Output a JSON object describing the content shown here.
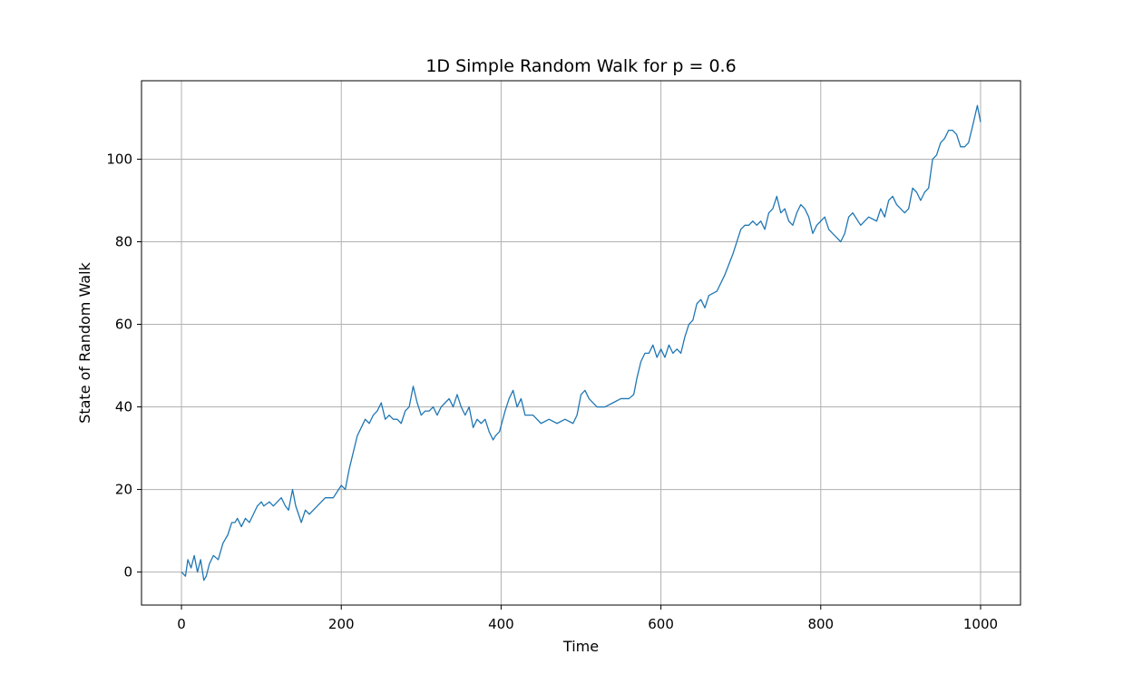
{
  "chart_data": {
    "type": "line",
    "title": "1D Simple Random Walk for p = 0.6",
    "xlabel": "Time",
    "ylabel": "State of Random Walk",
    "xlim": [
      -50,
      1050
    ],
    "ylim": [
      -8,
      119
    ],
    "xticks": [
      0,
      200,
      400,
      600,
      800,
      1000
    ],
    "yticks": [
      0,
      20,
      40,
      60,
      80,
      100
    ],
    "xtick_labels": [
      "0",
      "200",
      "400",
      "600",
      "800",
      "1000"
    ],
    "ytick_labels": [
      "0",
      "20",
      "40",
      "60",
      "80",
      "100"
    ],
    "grid": true,
    "line_color": "#1f77b4",
    "grid_color": "#b0b0b0",
    "series": [
      {
        "name": "",
        "x": [
          0,
          5,
          8,
          12,
          16,
          20,
          24,
          28,
          31,
          35,
          40,
          46,
          52,
          58,
          63,
          67,
          70,
          75,
          80,
          85,
          90,
          95,
          100,
          103,
          110,
          115,
          120,
          125,
          130,
          134,
          139,
          143,
          150,
          155,
          160,
          170,
          180,
          190,
          200,
          205,
          210,
          215,
          220,
          225,
          230,
          235,
          240,
          245,
          250,
          255,
          260,
          265,
          270,
          275,
          280,
          285,
          290,
          295,
          300,
          305,
          310,
          315,
          320,
          325,
          330,
          335,
          340,
          345,
          350,
          355,
          360,
          365,
          370,
          375,
          380,
          385,
          390,
          393,
          398,
          405,
          410,
          415,
          420,
          425,
          430,
          440,
          450,
          460,
          470,
          480,
          490,
          495,
          500,
          505,
          510,
          520,
          530,
          540,
          550,
          560,
          566,
          570,
          575,
          580,
          585,
          590,
          595,
          600,
          605,
          610,
          615,
          620,
          625,
          630,
          635,
          640,
          645,
          650,
          655,
          660,
          670,
          680,
          690,
          700,
          705,
          710,
          715,
          720,
          725,
          730,
          735,
          740,
          745,
          750,
          755,
          760,
          765,
          770,
          775,
          780,
          785,
          790,
          795,
          800,
          805,
          810,
          815,
          820,
          825,
          830,
          835,
          840,
          850,
          860,
          870,
          875,
          880,
          885,
          890,
          895,
          900,
          905,
          910,
          915,
          920,
          925,
          930,
          935,
          940,
          945,
          950,
          955,
          960,
          965,
          970,
          975,
          980,
          985,
          990,
          996,
          1000
        ],
        "y": [
          0,
          -1,
          3,
          1,
          4,
          0,
          3,
          -2,
          -1,
          2,
          4,
          3,
          7,
          9,
          12,
          12,
          13,
          11,
          13,
          12,
          14,
          16,
          17,
          16,
          17,
          16,
          17,
          18,
          16,
          15,
          20,
          16,
          12,
          15,
          14,
          16,
          18,
          18,
          21,
          20,
          25,
          29,
          33,
          35,
          37,
          36,
          38,
          39,
          41,
          37,
          38,
          37,
          37,
          36,
          39,
          40,
          45,
          41,
          38,
          39,
          39,
          40,
          38,
          40,
          41,
          42,
          40,
          43,
          40,
          38,
          40,
          35,
          37,
          36,
          37,
          34,
          32,
          33,
          34,
          39,
          42,
          44,
          40,
          42,
          38,
          38,
          36,
          37,
          36,
          37,
          36,
          38,
          43,
          44,
          42,
          40,
          40,
          41,
          42,
          42,
          43,
          47,
          51,
          53,
          53,
          55,
          52,
          54,
          52,
          55,
          53,
          54,
          53,
          57,
          60,
          61,
          65,
          66,
          64,
          67,
          68,
          72,
          77,
          83,
          84,
          84,
          85,
          84,
          85,
          83,
          87,
          88,
          91,
          87,
          88,
          85,
          84,
          87,
          89,
          88,
          86,
          82,
          84,
          85,
          86,
          83,
          82,
          81,
          80,
          82,
          86,
          87,
          84,
          86,
          85,
          88,
          86,
          90,
          91,
          89,
          88,
          87,
          88,
          93,
          92,
          90,
          92,
          93,
          100,
          101,
          104,
          105,
          107,
          107,
          106,
          103,
          103,
          104,
          108,
          113,
          109
        ]
      }
    ]
  }
}
